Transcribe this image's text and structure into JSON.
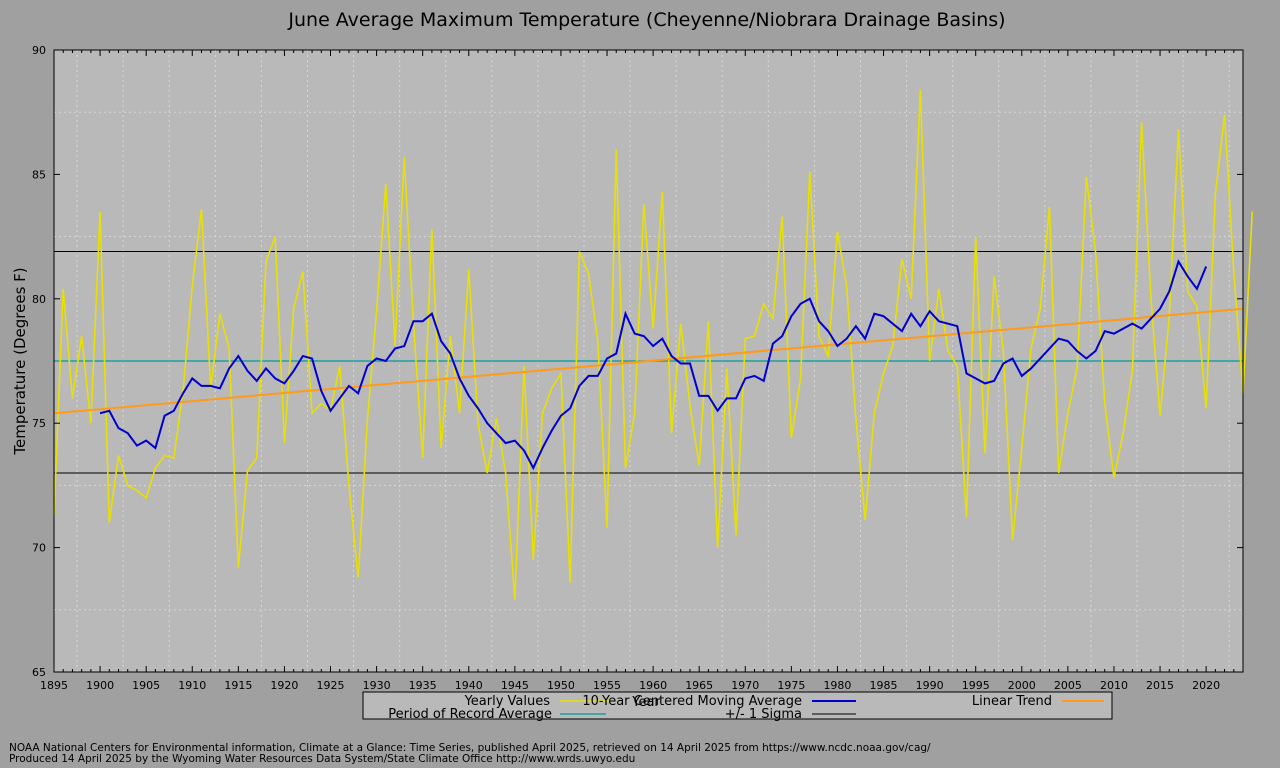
{
  "chart_data": {
    "type": "line",
    "title": "June Average Maximum Temperature (Cheyenne/Niobrara Drainage Basins)",
    "xlabel": "Year",
    "ylabel": "Temperature (Degrees F)",
    "xlim": [
      1895,
      2024
    ],
    "ylim": [
      65,
      90
    ],
    "x_ticks": [
      1895,
      1900,
      1905,
      1910,
      1915,
      1920,
      1925,
      1930,
      1935,
      1940,
      1945,
      1950,
      1955,
      1960,
      1965,
      1970,
      1975,
      1980,
      1985,
      1990,
      1995,
      2000,
      2005,
      2010,
      2015,
      2020
    ],
    "y_ticks": [
      65,
      70,
      75,
      80,
      85,
      90
    ],
    "grid": true,
    "legend_position": "bottom",
    "series": [
      {
        "name": "Yearly Values",
        "color": "#e8e000",
        "x_start": 1895,
        "values": [
          71.3,
          80.4,
          76.0,
          78.5,
          75.0,
          83.5,
          71.0,
          73.7,
          72.5,
          72.3,
          72.0,
          73.2,
          73.7,
          73.6,
          76.3,
          80.5,
          83.6,
          76.4,
          79.4,
          78.0,
          69.2,
          73.1,
          73.6,
          81.5,
          82.5,
          74.2,
          79.6,
          81.1,
          75.4,
          75.8,
          75.5,
          77.3,
          72.5,
          68.8,
          75.1,
          79.5,
          84.6,
          78.1,
          85.7,
          79.0,
          73.6,
          82.8,
          74.0,
          78.5,
          75.4,
          81.2,
          75.0,
          73.0,
          75.2,
          73.0,
          67.9,
          77.3,
          69.5,
          75.4,
          76.4,
          77.0,
          68.6,
          81.9,
          81.0,
          78.3,
          70.8,
          86.0,
          73.2,
          75.4,
          83.8,
          78.8,
          84.3,
          74.6,
          79.0,
          75.7,
          73.3,
          79.1,
          70.0,
          77.2,
          70.5,
          78.4,
          78.5,
          79.8,
          79.2,
          83.3,
          74.4,
          76.8,
          85.1,
          78.5,
          77.7,
          82.7,
          80.5,
          75.2,
          71.1,
          75.4,
          77.0,
          78.1,
          81.6,
          80.0,
          88.4,
          77.5,
          80.4,
          77.9,
          77.3,
          71.2,
          82.5,
          73.8,
          80.9,
          77.9,
          70.3,
          74.0,
          78.0,
          79.6,
          83.7,
          73.0,
          75.4,
          77.2,
          84.9,
          81.9,
          75.8,
          72.8,
          74.6,
          77.1,
          87.1,
          80.1,
          75.3,
          79.3,
          86.8,
          80.3,
          79.7,
          75.6,
          84.2,
          87.4,
          81.1,
          76.2,
          83.5
        ]
      },
      {
        "name": "10-Year Centered Moving Average",
        "color": "#0000cc",
        "x_start": 1900,
        "values": [
          75.4,
          75.5,
          74.8,
          74.6,
          74.1,
          74.3,
          74.0,
          75.3,
          75.5,
          76.2,
          76.8,
          76.5,
          76.5,
          76.4,
          77.2,
          77.7,
          77.1,
          76.7,
          77.2,
          76.8,
          76.6,
          77.1,
          77.7,
          77.6,
          76.3,
          75.5,
          76.0,
          76.5,
          76.2,
          77.3,
          77.6,
          77.5,
          78.0,
          78.1,
          79.1,
          79.1,
          79.4,
          78.3,
          77.8,
          76.8,
          76.1,
          75.6,
          75.0,
          74.6,
          74.2,
          74.3,
          73.9,
          73.2,
          74.0,
          74.7,
          75.3,
          75.6,
          76.5,
          76.9,
          76.9,
          77.6,
          77.8,
          79.4,
          78.6,
          78.5,
          78.1,
          78.4,
          77.7,
          77.4,
          77.4,
          76.1,
          76.1,
          75.5,
          76.0,
          76.0,
          76.8,
          76.9,
          76.7,
          78.2,
          78.5,
          79.3,
          79.8,
          80.0,
          79.1,
          78.7,
          78.1,
          78.4,
          78.9,
          78.4,
          79.4,
          79.3,
          79.0,
          78.7,
          79.4,
          78.9,
          79.5,
          79.1,
          79.0,
          78.9,
          77.0,
          76.8,
          76.6,
          76.7,
          77.4,
          77.6,
          76.9,
          77.2,
          77.6,
          78.0,
          78.4,
          78.3,
          77.9,
          77.6,
          77.9,
          78.7,
          78.6,
          78.8,
          79.0,
          78.8,
          79.2,
          79.6,
          80.3,
          81.5,
          80.9,
          80.4,
          81.3
        ]
      },
      {
        "name": "Linear Trend",
        "color": "#ff9a1a",
        "x": [
          1895,
          2024
        ],
        "values": [
          75.4,
          79.6
        ]
      },
      {
        "name": "Period of Record Average",
        "color": "#1ca0a0",
        "x": [
          1895,
          2024
        ],
        "values": [
          77.5,
          77.5
        ]
      },
      {
        "name": "+/- 1 Sigma",
        "color": "#000000",
        "x": [
          1895,
          2024
        ],
        "values_upper": [
          81.9,
          81.9
        ],
        "values_lower": [
          73.0,
          73.0
        ]
      }
    ]
  },
  "legend": [
    {
      "label": "Yearly Values",
      "color": "#e8e000"
    },
    {
      "label": "10-Year Centered Moving Average",
      "color": "#0000cc"
    },
    {
      "label": "Linear Trend",
      "color": "#ff9a1a"
    },
    {
      "label": "Period of Record Average",
      "color": "#1ca0a0"
    },
    {
      "label": "+/- 1 Sigma",
      "color": "#000000"
    }
  ],
  "footer": {
    "line1": "NOAA National Centers for Environmental information, Climate at a Glance: Time Series, published April 2025, retrieved on 14 April 2025 from https://www.ncdc.noaa.gov/cag/",
    "line2": "Produced 14 April 2025 by the Wyoming Water Resources Data System/State Climate Office http://www.wrds.uwyo.edu"
  }
}
